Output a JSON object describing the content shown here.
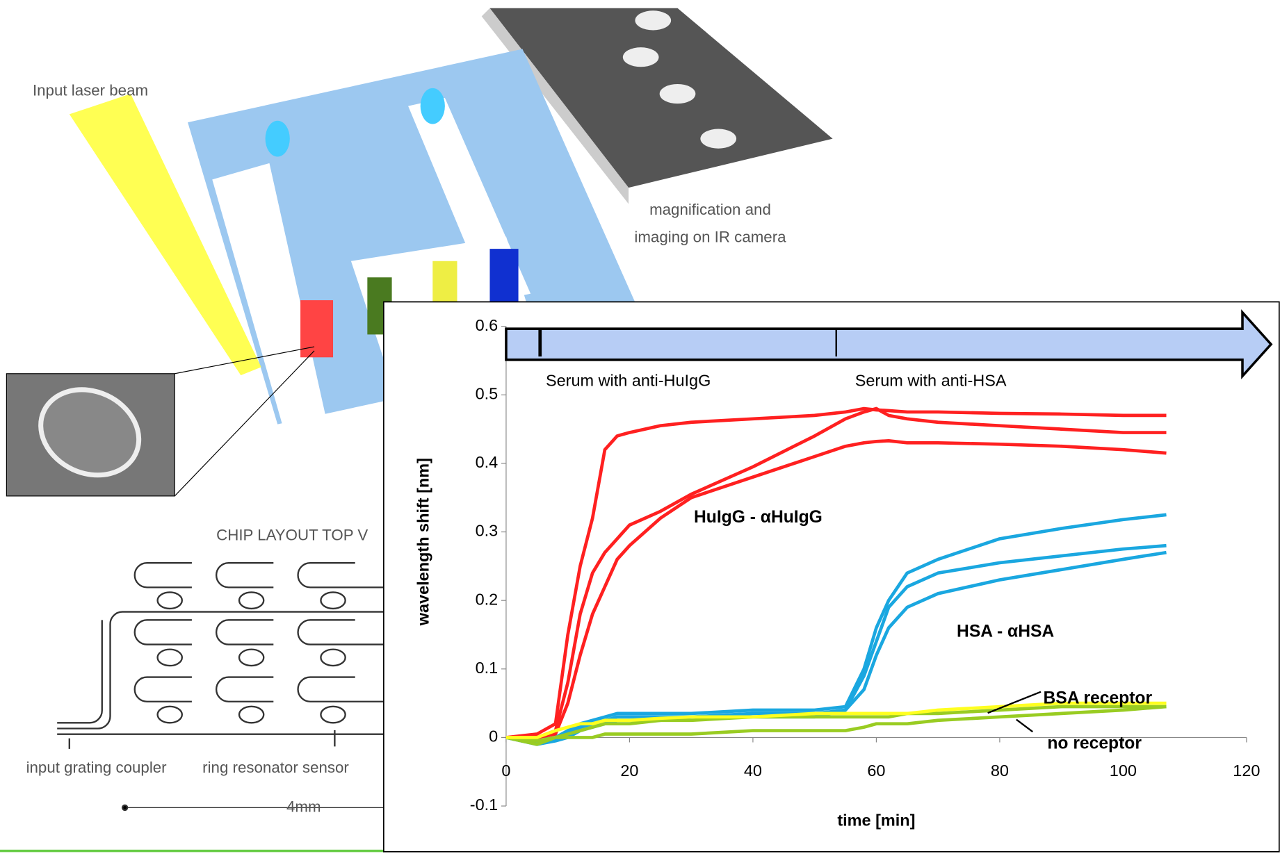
{
  "illustration": {
    "laser_label": "Input laser beam",
    "camera_label": [
      "magnification and",
      "imaging on IR camera"
    ],
    "layout_title": "CHIP LAYOUT TOP V",
    "coupler_label": "input grating coupler",
    "ring_label": "ring resonator sensor",
    "scale_label": "4mm"
  },
  "chart_data": {
    "type": "line",
    "x": [
      0,
      5,
      8,
      10,
      12,
      14,
      16,
      18,
      20,
      25,
      30,
      40,
      50,
      55,
      58,
      60,
      62,
      65,
      70,
      80,
      90,
      100,
      107
    ],
    "series": [
      {
        "color": "#ff2020",
        "values": [
          0,
          0.005,
          0.02,
          0.15,
          0.25,
          0.32,
          0.42,
          0.44,
          0.445,
          0.455,
          0.46,
          0.465,
          0.47,
          0.475,
          0.48,
          0.478,
          0.477,
          0.475,
          0.475,
          0.473,
          0.472,
          0.47,
          0.47
        ]
      },
      {
        "color": "#ff2020",
        "values": [
          0,
          0,
          0.01,
          0.08,
          0.18,
          0.24,
          0.27,
          0.29,
          0.31,
          0.33,
          0.355,
          0.395,
          0.44,
          0.465,
          0.475,
          0.48,
          0.47,
          0.465,
          0.46,
          0.455,
          0.45,
          0.445,
          0.445
        ]
      },
      {
        "color": "#ff2020",
        "values": [
          0,
          0,
          0.005,
          0.05,
          0.12,
          0.18,
          0.22,
          0.26,
          0.28,
          0.32,
          0.35,
          0.38,
          0.41,
          0.425,
          0.43,
          0.432,
          0.433,
          0.43,
          0.43,
          0.428,
          0.425,
          0.42,
          0.415
        ]
      },
      {
        "color": "#1aa7e0",
        "values": [
          0,
          -0.005,
          0,
          0.01,
          0.02,
          0.025,
          0.03,
          0.035,
          0.035,
          0.035,
          0.035,
          0.04,
          0.04,
          0.045,
          0.1,
          0.16,
          0.2,
          0.24,
          0.26,
          0.29,
          0.305,
          0.318,
          0.325
        ]
      },
      {
        "color": "#1aa7e0",
        "values": [
          0,
          -0.01,
          0,
          0.005,
          0.015,
          0.02,
          0.025,
          0.03,
          0.03,
          0.03,
          0.03,
          0.035,
          0.035,
          0.04,
          0.09,
          0.14,
          0.19,
          0.22,
          0.24,
          0.255,
          0.265,
          0.275,
          0.28
        ]
      },
      {
        "color": "#1aa7e0",
        "values": [
          0,
          -0.01,
          -0.005,
          0,
          0.01,
          0.015,
          0.02,
          0.025,
          0.025,
          0.025,
          0.03,
          0.03,
          0.03,
          0.04,
          0.07,
          0.12,
          0.16,
          0.19,
          0.21,
          0.23,
          0.245,
          0.26,
          0.27
        ]
      },
      {
        "color": "#99cc22",
        "values": [
          0,
          -0.01,
          0,
          0.005,
          0.01,
          0.015,
          0.02,
          0.02,
          0.02,
          0.025,
          0.025,
          0.03,
          0.03,
          0.03,
          0.03,
          0.03,
          0.03,
          0.035,
          0.035,
          0.04,
          0.045,
          0.045,
          0.045
        ]
      },
      {
        "color": "#99cc22",
        "values": [
          0,
          -0.005,
          0,
          0,
          0,
          0,
          0.005,
          0.005,
          0.005,
          0.005,
          0.005,
          0.01,
          0.01,
          0.01,
          0.015,
          0.02,
          0.02,
          0.02,
          0.025,
          0.03,
          0.035,
          0.04,
          0.045
        ]
      },
      {
        "color": "#ffff20",
        "values": [
          0,
          0,
          0.01,
          0.015,
          0.02,
          0.02,
          0.025,
          0.025,
          0.025,
          0.028,
          0.03,
          0.03,
          0.035,
          0.035,
          0.035,
          0.035,
          0.035,
          0.035,
          0.04,
          0.045,
          0.05,
          0.05,
          0.05
        ]
      }
    ],
    "xlim": [
      0,
      120
    ],
    "xticks": [
      0,
      20,
      40,
      60,
      80,
      100,
      120
    ],
    "ylim": [
      -0.1,
      0.6
    ],
    "yticks": [
      -0.1,
      0,
      0.1,
      0.2,
      0.3,
      0.4,
      0.5,
      0.6
    ],
    "x_label": "time [min]",
    "y_label": "wavelength shift [nm]",
    "events": [
      {
        "x": 5.5,
        "label": "Serum with anti-HuIgG"
      },
      {
        "x": 53.5,
        "label": "Serum with anti-HSA"
      }
    ],
    "annotations": [
      "HuIgG - αHuIgG",
      "HSA - αHSA",
      "BSA receptor",
      "no receptor"
    ]
  }
}
